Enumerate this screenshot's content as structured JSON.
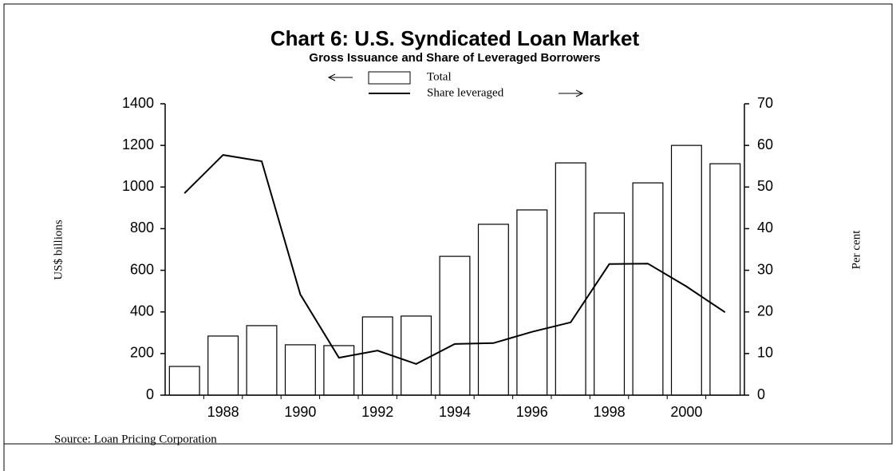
{
  "chart_data": {
    "type": "bar_line",
    "title": "Chart 6: U.S. Syndicated Loan Market",
    "subtitle": "Gross Issuance and Share of Leveraged Borrowers",
    "y_label": "US$ billions",
    "y2_label": "Per cent",
    "source": "Source: Loan Pricing Corporation",
    "categories": [
      null,
      "1988",
      null,
      "1990",
      null,
      "1992",
      null,
      "1994",
      null,
      "1996",
      null,
      "1998",
      null,
      "2000",
      null
    ],
    "series": [
      {
        "name": "Total",
        "type": "bar",
        "color": "#ffffff",
        "values": [
          138,
          284,
          334,
          242,
          238,
          376,
          380,
          667,
          821,
          890,
          1116,
          875,
          1020,
          1200,
          1112
        ]
      },
      {
        "name": "Share leveraged",
        "type": "line",
        "axis": "y2",
        "color": "#000000",
        "values": [
          48.5,
          57.7,
          56.2,
          24.2,
          9.0,
          10.7,
          7.5,
          12.3,
          12.5,
          15.2,
          17.5,
          31.5,
          31.6,
          26.1,
          19.9
        ]
      }
    ],
    "ylim": [
      0,
      1400
    ],
    "yticks": [
      0,
      200,
      400,
      600,
      800,
      1000,
      1200,
      1400
    ],
    "y2lim": [
      0,
      70
    ],
    "y2ticks": [
      0,
      10,
      20,
      30,
      40,
      50,
      60,
      70
    ],
    "grid": false
  }
}
